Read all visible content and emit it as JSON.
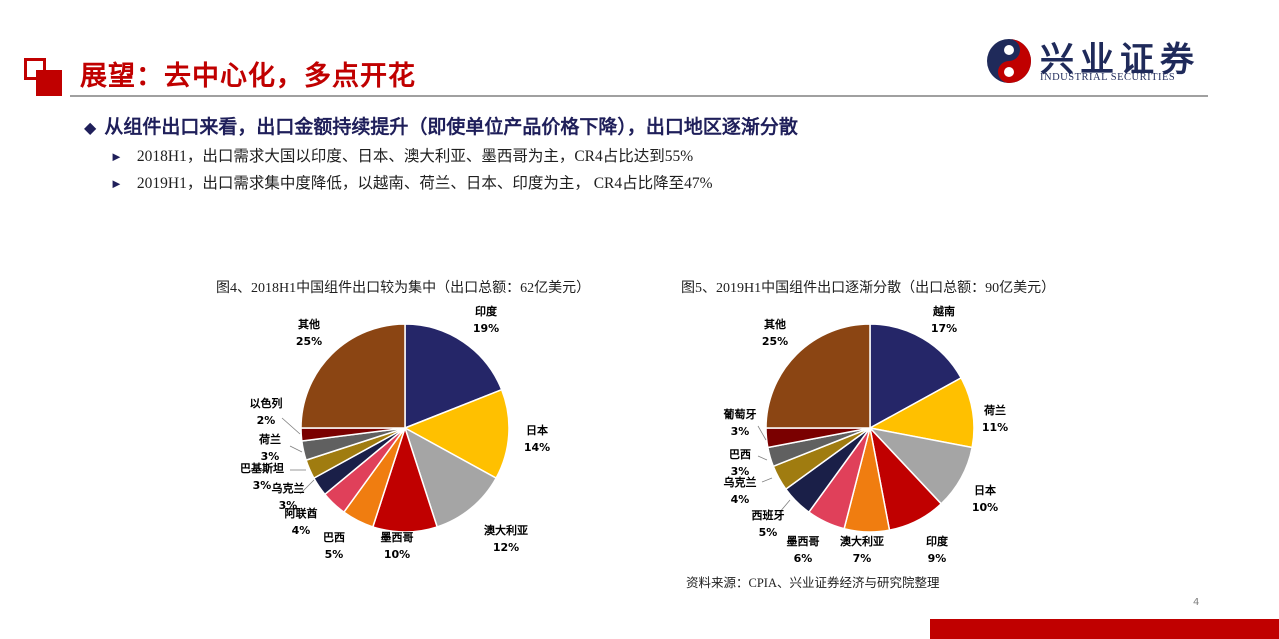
{
  "header": {
    "title": "展望：去中心化，多点开花",
    "logo_cn": "兴业证券",
    "logo_en": "INDUSTRIAL SECURITIES"
  },
  "bullets": {
    "main": "从组件出口来看，出口金额持续提升（即使单位产品价格下降），出口地区逐渐分散",
    "sub1": "2018H1，出口需求大国以印度、日本、澳大利亚、墨西哥为主，CR4占比达到55%",
    "sub2": "2019H1，出口需求集中度降低，以越南、荷兰、日本、印度为主， CR4占比降至47%"
  },
  "colors": {
    "accent": "#c00000",
    "navy": "#1f1f5a"
  },
  "chart_data": [
    {
      "type": "pie",
      "title": "图4、2018H1中国组件出口较为集中（出口总额：62亿美元）",
      "slices": [
        {
          "name": "印度",
          "value": 19,
          "label": "19%",
          "color": "#252668"
        },
        {
          "name": "日本",
          "value": 14,
          "label": "14%",
          "color": "#ffc000"
        },
        {
          "name": "澳大利亚",
          "value": 12,
          "label": "12%",
          "color": "#a5a5a5"
        },
        {
          "name": "墨西哥",
          "value": 10,
          "label": "10%",
          "color": "#c00000"
        },
        {
          "name": "巴西",
          "value": 5,
          "label": "5%",
          "color": "#f07d10"
        },
        {
          "name": "阿联酋",
          "value": 4,
          "label": "4%",
          "color": "#e0405a"
        },
        {
          "name": "乌克兰",
          "value": 3,
          "label": "3%",
          "color": "#1a1f48"
        },
        {
          "name": "巴基斯坦",
          "value": 3,
          "label": "3%",
          "color": "#a07c10"
        },
        {
          "name": "荷兰",
          "value": 3,
          "label": "3%",
          "color": "#606060"
        },
        {
          "name": "以色列",
          "value": 2,
          "label": "2%",
          "color": "#7a0000"
        },
        {
          "name": "其他",
          "value": 25,
          "label": "25%",
          "color": "#8b4513"
        }
      ]
    },
    {
      "type": "pie",
      "title": "图5、2019H1中国组件出口逐渐分散（出口总额：90亿美元）",
      "slices": [
        {
          "name": "越南",
          "value": 17,
          "label": "17%",
          "color": "#252668"
        },
        {
          "name": "荷兰",
          "value": 11,
          "label": "11%",
          "color": "#ffc000"
        },
        {
          "name": "日本",
          "value": 10,
          "label": "10%",
          "color": "#a5a5a5"
        },
        {
          "name": "印度",
          "value": 9,
          "label": "9%",
          "color": "#c00000"
        },
        {
          "name": "澳大利亚",
          "value": 7,
          "label": "7%",
          "color": "#f07d10"
        },
        {
          "name": "墨西哥",
          "value": 6,
          "label": "6%",
          "color": "#e0405a"
        },
        {
          "name": "西班牙",
          "value": 5,
          "label": "5%",
          "color": "#1a1f48"
        },
        {
          "name": "乌克兰",
          "value": 4,
          "label": "4%",
          "color": "#a07c10"
        },
        {
          "name": "巴西",
          "value": 3,
          "label": "3%",
          "color": "#606060"
        },
        {
          "name": "葡萄牙",
          "value": 3,
          "label": "3%",
          "color": "#7a0000"
        },
        {
          "name": "其他",
          "value": 25,
          "label": "25%",
          "color": "#8b4513"
        }
      ]
    }
  ],
  "source": "资料来源：CPIA、兴业证券经济与研究院整理",
  "page_number": "4"
}
